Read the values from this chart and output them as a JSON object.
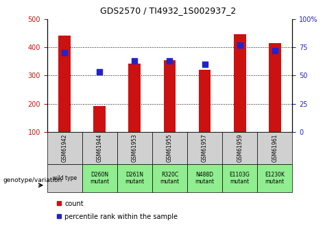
{
  "title": "GDS2570 / TI4932_1S002937_2",
  "samples": [
    "GSM61942",
    "GSM61944",
    "GSM61953",
    "GSM61955",
    "GSM61957",
    "GSM61959",
    "GSM61961"
  ],
  "genotypes": [
    "wild type",
    "D260N\nmutant",
    "D261N\nmutant",
    "R320C\nmutant",
    "N488D\nmutant",
    "E1103G\nmutant",
    "E1230K\nmutant"
  ],
  "counts": [
    440,
    193,
    342,
    355,
    320,
    447,
    415
  ],
  "percentiles": [
    70,
    53,
    63,
    63,
    60,
    77,
    72
  ],
  "ylim_left": [
    100,
    500
  ],
  "ylim_right": [
    0,
    100
  ],
  "bar_color": "#cc1111",
  "dot_color": "#2222cc",
  "bg_xticklabels": "#d0d0d0",
  "bg_genotype_wt": "#d0d0d0",
  "bg_genotype_mut": "#90ee90",
  "left_tick_color": "#cc1111",
  "right_tick_color": "#2222cc",
  "grid_color": "#000000",
  "bar_width": 0.35,
  "dot_size": 30,
  "legend_label_count": "count",
  "legend_label_pct": "percentile rank within the sample",
  "genotype_label": "genotype/variation"
}
